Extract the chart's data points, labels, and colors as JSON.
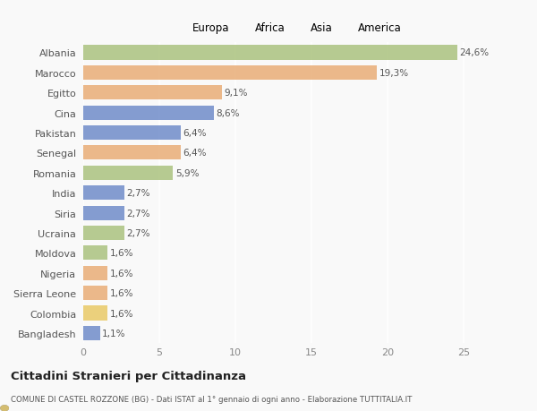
{
  "categories": [
    "Albania",
    "Marocco",
    "Egitto",
    "Cina",
    "Pakistan",
    "Senegal",
    "Romania",
    "India",
    "Siria",
    "Ucraina",
    "Moldova",
    "Nigeria",
    "Sierra Leone",
    "Colombia",
    "Bangladesh"
  ],
  "values": [
    24.6,
    19.3,
    9.1,
    8.6,
    6.4,
    6.4,
    5.9,
    2.7,
    2.7,
    2.7,
    1.6,
    1.6,
    1.6,
    1.6,
    1.1
  ],
  "labels": [
    "24,6%",
    "19,3%",
    "9,1%",
    "8,6%",
    "6,4%",
    "6,4%",
    "5,9%",
    "2,7%",
    "2,7%",
    "2,7%",
    "1,6%",
    "1,6%",
    "1,6%",
    "1,6%",
    "1,1%"
  ],
  "continents": [
    "Europa",
    "Africa",
    "Africa",
    "Asia",
    "Asia",
    "Africa",
    "Europa",
    "Asia",
    "Asia",
    "Europa",
    "Europa",
    "Africa",
    "Africa",
    "America",
    "Asia"
  ],
  "colors": {
    "Europa": "#a8c07a",
    "Africa": "#e8aa72",
    "Asia": "#6b88c8",
    "America": "#e8c860"
  },
  "legend_order": [
    "Europa",
    "Africa",
    "Asia",
    "America"
  ],
  "title": "Cittadini Stranieri per Cittadinanza",
  "subtitle": "COMUNE DI CASTEL ROZZONE (BG) - Dati ISTAT al 1° gennaio di ogni anno - Elaborazione TUTTITALIA.IT",
  "xlim": [
    0,
    27
  ],
  "xticks": [
    0,
    5,
    10,
    15,
    20,
    25
  ],
  "background_color": "#f9f9f9",
  "bar_alpha": 0.82
}
